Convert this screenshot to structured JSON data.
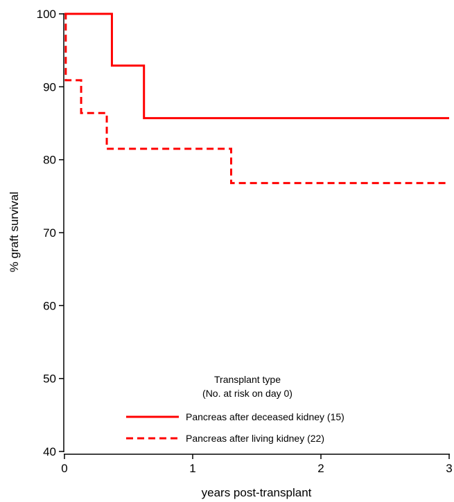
{
  "chart_data": {
    "type": "line",
    "step": true,
    "title": "",
    "xlabel": "years post-transplant",
    "ylabel": "% graft survival",
    "xlim": [
      0,
      3
    ],
    "ylim": [
      40,
      100
    ],
    "xticks": [
      0,
      1,
      2,
      3
    ],
    "yticks": [
      40,
      50,
      60,
      70,
      80,
      90,
      100
    ],
    "grid": false,
    "legend": {
      "position": "bottom-center",
      "title_line1": "Transplant type",
      "title_line2": "(No. at risk on day 0)"
    },
    "series": [
      {
        "name": "Pancreas after deceased kidney (15)",
        "style": "solid",
        "color": "#ff0000",
        "x": [
          0,
          0.37,
          0.62,
          3
        ],
        "y": [
          100,
          92.9,
          85.7,
          85.7
        ]
      },
      {
        "name": "Pancreas after living kidney (22)",
        "style": "dashed",
        "color": "#ff0000",
        "x": [
          0,
          0.01,
          0.13,
          0.33,
          1.3,
          3
        ],
        "y": [
          100,
          90.9,
          86.4,
          81.5,
          76.8,
          76.8
        ]
      }
    ]
  }
}
